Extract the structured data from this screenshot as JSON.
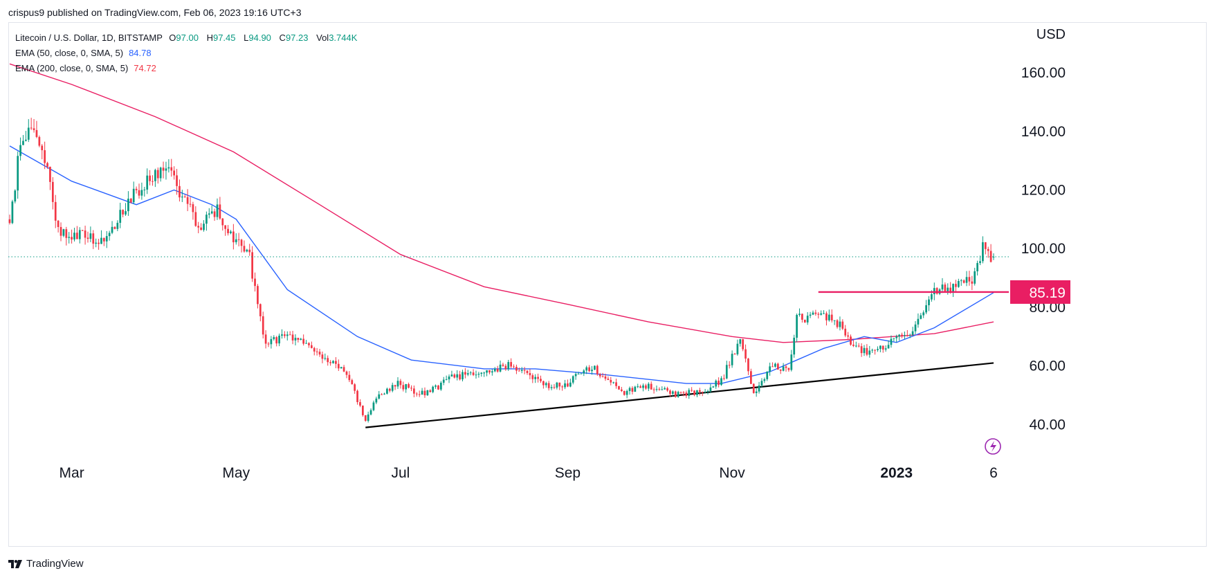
{
  "header": {
    "publisher": "crispus9 published on TradingView.com, Feb 06, 2023 19:16 UTC+3"
  },
  "legend": {
    "symbol": "Litecoin / U.S. Dollar, 1D, BITSTAMP",
    "o_label": "O",
    "o_value": "97.00",
    "h_label": "H",
    "h_value": "97.45",
    "l_label": "L",
    "l_value": "94.90",
    "c_label": "C",
    "c_value": "97.23",
    "vol_label": "Vol",
    "vol_value": "3.744K",
    "ema50_label": "EMA (50, close, 0, SMA, 5)",
    "ema50_value": "84.78",
    "ema200_label": "EMA (200, close, 0, SMA, 5)",
    "ema200_value": "74.72"
  },
  "footer": {
    "brand": "TradingView"
  },
  "colors": {
    "up": "#089981",
    "down": "#f23645",
    "ema50": "#2962ff",
    "ema200": "#e91e63",
    "resistance": "#e91e63",
    "support": "#000000",
    "price_line": "#089981"
  },
  "chart_data": {
    "type": "candlestick",
    "currency": "USD",
    "yticks": [
      40,
      60,
      80,
      100,
      120,
      140,
      160
    ],
    "ytick_labels": [
      "40.00",
      "60.00",
      "80.00",
      "100.00",
      "120.00",
      "140.00",
      "160.00"
    ],
    "ylim": [
      29,
      177
    ],
    "xlim": [
      "2022-02-06",
      "2023-02-06"
    ],
    "xticks": [
      {
        "date": "2022-03-01",
        "label": "Mar"
      },
      {
        "date": "2022-05-01",
        "label": "May"
      },
      {
        "date": "2022-07-01",
        "label": "Jul"
      },
      {
        "date": "2022-09-01",
        "label": "Sep"
      },
      {
        "date": "2022-11-01",
        "label": "Nov"
      },
      {
        "date": "2023-01-01",
        "label": "2023"
      },
      {
        "date": "2023-02-06",
        "label": "6"
      }
    ],
    "last_price": 97.23,
    "close_anchors": [
      [
        "2022-02-06",
        110
      ],
      [
        "2022-02-10",
        135
      ],
      [
        "2022-02-13",
        142
      ],
      [
        "2022-02-20",
        128
      ],
      [
        "2022-02-24",
        106
      ],
      [
        "2022-03-05",
        104
      ],
      [
        "2022-03-12",
        102
      ],
      [
        "2022-03-18",
        110
      ],
      [
        "2022-03-27",
        122
      ],
      [
        "2022-04-04",
        128
      ],
      [
        "2022-04-10",
        120
      ],
      [
        "2022-04-17",
        108
      ],
      [
        "2022-04-24",
        113
      ],
      [
        "2022-05-01",
        103
      ],
      [
        "2022-05-06",
        97
      ],
      [
        "2022-05-09",
        80
      ],
      [
        "2022-05-12",
        67
      ],
      [
        "2022-05-18",
        70
      ],
      [
        "2022-05-25",
        68
      ],
      [
        "2022-06-01",
        64
      ],
      [
        "2022-06-10",
        59
      ],
      [
        "2022-06-18",
        42
      ],
      [
        "2022-06-22",
        49
      ],
      [
        "2022-06-30",
        54
      ],
      [
        "2022-07-10",
        50
      ],
      [
        "2022-07-20",
        56
      ],
      [
        "2022-07-30",
        58
      ],
      [
        "2022-08-10",
        60
      ],
      [
        "2022-08-15",
        58
      ],
      [
        "2022-08-25",
        53
      ],
      [
        "2022-09-01",
        54
      ],
      [
        "2022-09-10",
        60
      ],
      [
        "2022-09-15",
        56
      ],
      [
        "2022-09-22",
        51
      ],
      [
        "2022-10-01",
        53
      ],
      [
        "2022-10-13",
        50
      ],
      [
        "2022-10-22",
        52
      ],
      [
        "2022-10-28",
        55
      ],
      [
        "2022-11-04",
        69
      ],
      [
        "2022-11-09",
        50
      ],
      [
        "2022-11-15",
        60
      ],
      [
        "2022-11-22",
        59
      ],
      [
        "2022-11-25",
        76
      ],
      [
        "2022-12-05",
        77
      ],
      [
        "2022-12-12",
        74
      ],
      [
        "2022-12-16",
        66
      ],
      [
        "2022-12-22",
        64
      ],
      [
        "2022-12-30",
        68
      ],
      [
        "2023-01-08",
        73
      ],
      [
        "2023-01-14",
        85
      ],
      [
        "2023-01-18",
        86
      ],
      [
        "2023-01-24",
        88
      ],
      [
        "2023-01-29",
        89
      ],
      [
        "2023-02-02",
        100
      ],
      [
        "2023-02-05",
        97
      ]
    ],
    "ema50_points": [
      [
        "2022-02-06",
        135
      ],
      [
        "2022-03-01",
        123
      ],
      [
        "2022-03-25",
        115
      ],
      [
        "2022-04-08",
        120
      ],
      [
        "2022-04-22",
        115
      ],
      [
        "2022-05-01",
        110
      ],
      [
        "2022-05-20",
        86
      ],
      [
        "2022-06-15",
        70
      ],
      [
        "2022-07-05",
        62
      ],
      [
        "2022-08-01",
        59
      ],
      [
        "2022-08-20",
        59
      ],
      [
        "2022-09-15",
        57
      ],
      [
        "2022-10-15",
        54
      ],
      [
        "2022-10-28",
        54
      ],
      [
        "2022-11-15",
        58
      ],
      [
        "2022-12-05",
        66
      ],
      [
        "2022-12-20",
        70
      ],
      [
        "2023-01-01",
        68
      ],
      [
        "2023-01-15",
        73
      ],
      [
        "2023-02-06",
        85
      ]
    ],
    "ema200_points": [
      [
        "2022-02-06",
        163
      ],
      [
        "2022-03-01",
        156
      ],
      [
        "2022-04-01",
        145
      ],
      [
        "2022-04-30",
        133
      ],
      [
        "2022-06-01",
        115
      ],
      [
        "2022-07-01",
        98
      ],
      [
        "2022-08-01",
        87
      ],
      [
        "2022-09-01",
        81
      ],
      [
        "2022-10-01",
        75
      ],
      [
        "2022-11-01",
        70
      ],
      [
        "2022-11-20",
        68
      ],
      [
        "2022-12-15",
        69
      ],
      [
        "2023-01-15",
        71
      ],
      [
        "2023-02-06",
        75
      ]
    ],
    "resistance": {
      "value": 85.19,
      "label": "85.19",
      "from": "2022-12-03",
      "to": "2023-02-06"
    },
    "support_line": {
      "from": [
        "2022-06-18",
        39
      ],
      "to": [
        "2023-02-06",
        61
      ]
    }
  }
}
